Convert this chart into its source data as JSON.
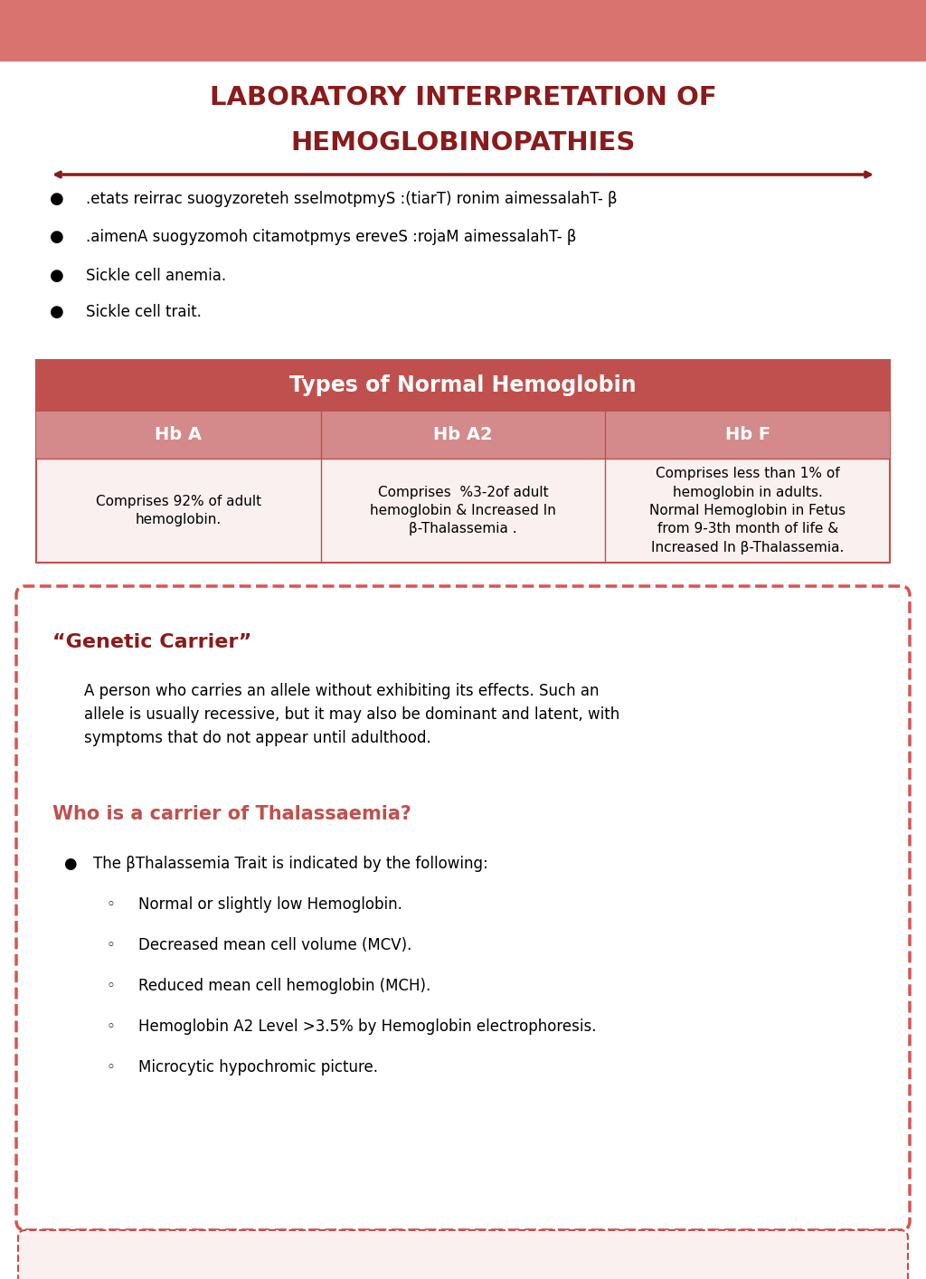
{
  "title_line1": "LABORATORY INTERPRETATION OF",
  "title_line2": "HEMOGLOBINOPATHIES",
  "title_color": "#8B1A1A",
  "top_bar_color": "#D9736F",
  "bg_color": "#FFFFFF",
  "arrow_color": "#8B1A1A",
  "bullet_items": [
    ".etats reirrac suogyzoreteh sselmotpmyS :(tiarT) ronim aimessalahT- β",
    ".aimenA suogyzomoh citamotpmys ereveS :rojaM aimessalahT- β",
    "Sickle cell anemia.",
    "Sickle cell trait."
  ],
  "table_title": "Types of Normal Hemoglobin",
  "table_header_color": "#C0504D",
  "table_subheader_color": "#D48A8A",
  "table_bg_color": "#FAF0F0",
  "table_border_color": "#C0504D",
  "table_cols": [
    "Hb A",
    "Hb A2",
    "Hb F"
  ],
  "table_content": [
    "Comprises 92% of adult\nhemoglobin.",
    "Comprises  %3-2of adult\nhemoglobin & Increased In\nβ-Thalassemia .",
    "Comprises less than 1% of\nhemoglobin in adults.\nNormal Hemoglobin in Fetus\nfrom 9-3th month of life &\nIncreased In β-Thalassemia."
  ],
  "genetic_carrier_title": "“Genetic Carrier”",
  "genetic_carrier_color": "#8B1A1A",
  "genetic_carrier_body": "A person who carries an allele without exhibiting its effects. Such an\nallele is usually recessive, but it may also be dominant and latent, with\nsymptoms that do not appear until adulthood.",
  "who_carrier_title": "Who is a carrier of Thalassaemia?",
  "who_carrier_color": "#C0504D",
  "carrier_bullet": "The βThalassemia Trait is indicated by the following:",
  "carrier_subitems": [
    "Normal or slightly low Hemoglobin.",
    "Decreased mean cell volume (MCV).",
    "Reduced mean cell hemoglobin (MCH).",
    "Hemoglobin A2 Level >3.5% by Hemoglobin electrophoresis.",
    "Microcytic hypochromic picture."
  ],
  "dashed_box_color": "#D9534F",
  "bottom_box_color": "#FAF0F0",
  "bottom_border_color": "#C0504D"
}
